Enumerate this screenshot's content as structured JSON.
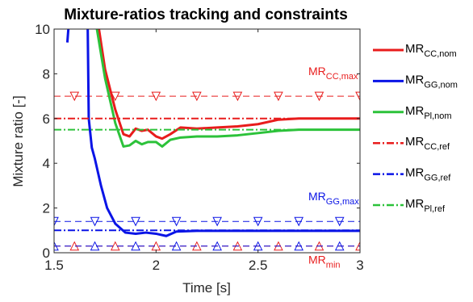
{
  "chart_data": {
    "type": "line",
    "title": "Mixture-ratios tracking and constraints",
    "xlabel": "Time [s]",
    "ylabel": "Mixture ratio [-]",
    "xlim": [
      1.5,
      3
    ],
    "ylim": [
      0,
      10
    ],
    "xticks": [
      1.5,
      2,
      2.5,
      3
    ],
    "yticks": [
      0,
      2,
      4,
      6,
      8,
      10
    ],
    "grid": false,
    "series": [
      {
        "name": "MR",
        "name_sub": "CC,nom",
        "color": "#e81c1c",
        "style": "solid",
        "x": [
          1.72,
          1.75,
          1.8,
          1.84,
          1.87,
          1.9,
          1.93,
          1.96,
          2.0,
          2.03,
          2.07,
          2.12,
          2.2,
          2.3,
          2.4,
          2.5,
          2.6,
          2.7,
          3.0
        ],
        "values": [
          10,
          8.2,
          6.4,
          5.3,
          5.2,
          5.55,
          5.45,
          5.5,
          5.2,
          5.1,
          5.3,
          5.6,
          5.55,
          5.6,
          5.65,
          5.75,
          5.95,
          6.0,
          6.0
        ]
      },
      {
        "name": "MR",
        "name_sub": "GG,nom",
        "color": "#0a14e6",
        "style": "solid",
        "x": [
          1.565,
          1.57,
          1.6,
          1.665,
          1.67,
          1.685,
          1.7,
          1.73,
          1.76,
          1.8,
          1.85,
          1.9,
          1.95,
          2.0,
          2.05,
          2.1,
          2.2,
          2.5,
          3.0
        ],
        "values": [
          9.4,
          10,
          null,
          10,
          6,
          4.7,
          4.2,
          3.0,
          2.0,
          1.3,
          0.9,
          0.85,
          0.9,
          0.85,
          0.75,
          0.95,
          0.98,
          0.98,
          0.98
        ]
      },
      {
        "name": "MR",
        "name_sub": "Pl,nom",
        "color": "#2cc23a",
        "style": "solid",
        "x": [
          1.71,
          1.75,
          1.8,
          1.84,
          1.87,
          1.9,
          1.93,
          1.96,
          2.0,
          2.03,
          2.07,
          2.12,
          2.2,
          2.3,
          2.4,
          2.5,
          2.6,
          2.7,
          3.0
        ],
        "values": [
          10,
          7.8,
          5.8,
          4.75,
          4.8,
          5.0,
          4.85,
          4.95,
          4.95,
          4.75,
          5.05,
          5.15,
          5.2,
          5.2,
          5.25,
          5.35,
          5.45,
          5.5,
          5.5
        ]
      },
      {
        "name": "MR",
        "name_sub": "CC,ref",
        "color": "#e81c1c",
        "style": "dashdot",
        "x": [
          1.5,
          3
        ],
        "values": [
          6,
          6
        ]
      },
      {
        "name": "MR",
        "name_sub": "GG,ref",
        "color": "#0a14e6",
        "style": "dashdot",
        "x": [
          1.5,
          3
        ],
        "values": [
          1,
          1
        ]
      },
      {
        "name": "MR",
        "name_sub": "Pl,ref",
        "color": "#2cc23a",
        "style": "dashdot",
        "x": [
          1.5,
          3
        ],
        "values": [
          5.5,
          5.5
        ]
      }
    ],
    "constraints": [
      {
        "value": 7,
        "color": "#e81c1c",
        "marker": "down",
        "label": "MR",
        "label_sub": "CC,max"
      },
      {
        "value": 1.4,
        "color": "#0a14e6",
        "marker": "down",
        "label": "MR",
        "label_sub": "GG,max"
      },
      {
        "value": 0.3,
        "color": "#e81c1c",
        "marker": "up",
        "label": "MR",
        "label_sub": "min"
      },
      {
        "value": 0.3,
        "color": "#0a14e6",
        "marker": "up"
      }
    ]
  }
}
